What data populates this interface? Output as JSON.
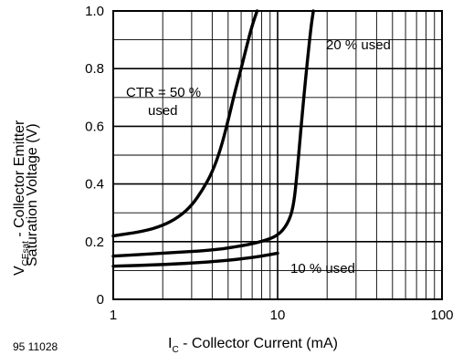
{
  "chart_data": {
    "type": "line",
    "x_scale": "log",
    "xlim": [
      1,
      100
    ],
    "ylim": [
      0,
      1.0
    ],
    "x_ticks": [
      "1",
      "10",
      "100"
    ],
    "y_ticks": [
      "0",
      "0.2",
      "0.4",
      "0.6",
      "0.8",
      "1.0"
    ],
    "xlabel": {
      "main": "I",
      "sub": "C",
      "rest": " - Collector Current (mA)"
    },
    "ylabel": {
      "main": "V",
      "sub": "CEsat",
      "rest": " - Collector Emitter",
      "line2": "Saturation Voltage (V)"
    },
    "figure_code": "95 11028",
    "grid": true,
    "series": [
      {
        "name": "CTR = 50 % used",
        "x": [
          1,
          1.5,
          2,
          2.5,
          3,
          3.5,
          4,
          4.5,
          5,
          5.5,
          6,
          6.5,
          7,
          7.5
        ],
        "y": [
          0.22,
          0.235,
          0.255,
          0.285,
          0.325,
          0.38,
          0.44,
          0.52,
          0.62,
          0.72,
          0.8,
          0.88,
          0.95,
          1.0
        ]
      },
      {
        "name": "20 % used",
        "x": [
          1,
          2,
          4,
          6,
          8,
          10,
          11.5,
          12.5,
          13.2,
          14,
          15,
          16,
          16.5
        ],
        "y": [
          0.15,
          0.16,
          0.17,
          0.185,
          0.2,
          0.22,
          0.26,
          0.32,
          0.45,
          0.62,
          0.8,
          0.95,
          1.0
        ]
      },
      {
        "name": "10 % used",
        "x": [
          1,
          2,
          4,
          6,
          8,
          10
        ],
        "y": [
          0.115,
          0.12,
          0.13,
          0.14,
          0.15,
          0.16
        ]
      }
    ],
    "annotations": [
      {
        "text": "CTR = 50 %",
        "series": 0
      },
      {
        "text": "used",
        "series": 0
      },
      {
        "text": "20 % used",
        "series": 1
      },
      {
        "text": "10 % used",
        "series": 2
      }
    ]
  }
}
